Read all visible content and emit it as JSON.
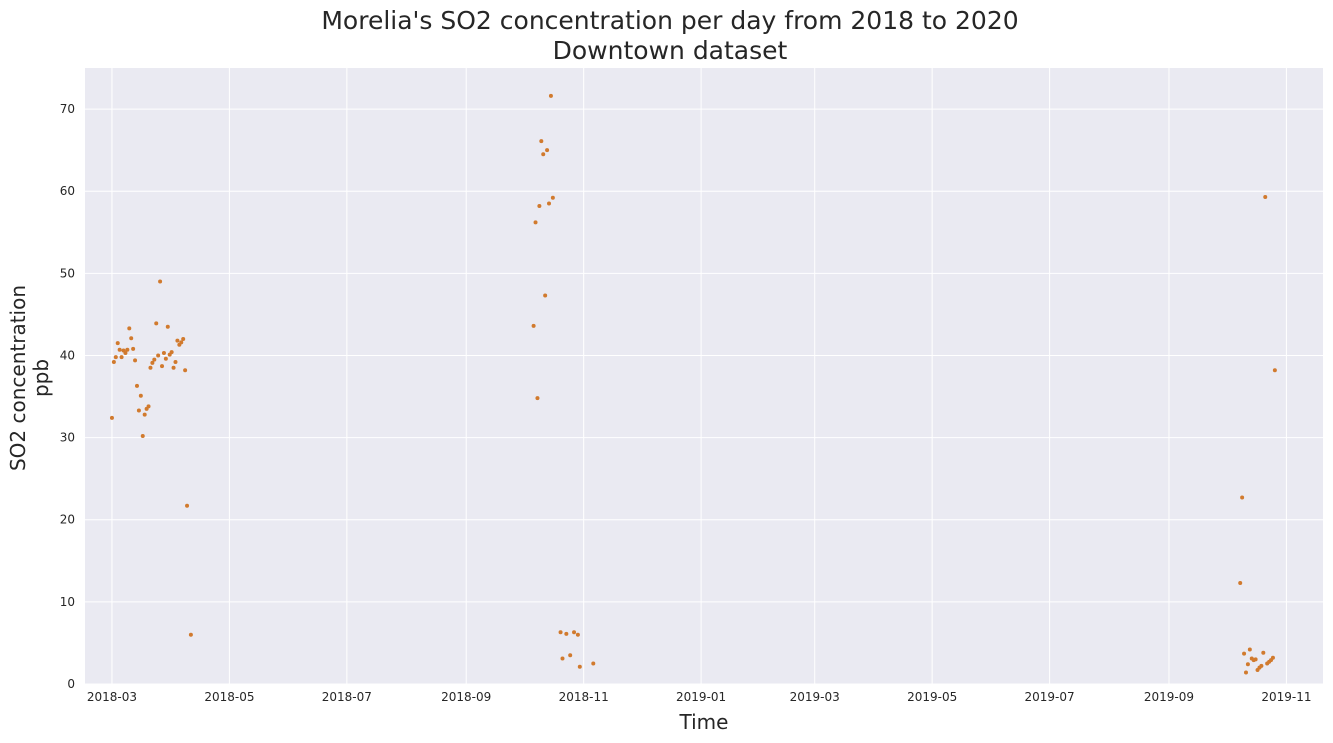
{
  "chart_data": {
    "type": "scatter",
    "title": "Morelia's SO2 concentration per day from 2018 to 2020",
    "subtitle": "Downtown dataset",
    "xlabel": "Time",
    "ylabel": "SO2 concentration",
    "ylabel2": "ppb",
    "x_ticks": [
      "2018-03",
      "2018-05",
      "2018-07",
      "2018-09",
      "2018-11",
      "2019-01",
      "2019-03",
      "2019-05",
      "2019-07",
      "2019-09",
      "2019-11"
    ],
    "y_ticks": [
      0,
      10,
      20,
      30,
      40,
      50,
      60,
      70
    ],
    "xlim": [
      "2018-02-15",
      "2019-11-20"
    ],
    "ylim": [
      0,
      75
    ],
    "grid": true,
    "colors": {
      "background": "#eaeaf2",
      "grid": "#ffffff",
      "points": "#d17a2e",
      "text": "#262626"
    },
    "series": [
      {
        "points": [
          [
            "2018-03-01",
            32.4
          ],
          [
            "2018-03-02",
            39.2
          ],
          [
            "2018-03-03",
            39.8
          ],
          [
            "2018-03-04",
            41.5
          ],
          [
            "2018-03-05",
            40.7
          ],
          [
            "2018-03-06",
            39.8
          ],
          [
            "2018-03-07",
            40.6
          ],
          [
            "2018-03-08",
            40.3
          ],
          [
            "2018-03-09",
            40.7
          ],
          [
            "2018-03-10",
            43.3
          ],
          [
            "2018-03-11",
            42.1
          ],
          [
            "2018-03-12",
            40.8
          ],
          [
            "2018-03-13",
            39.4
          ],
          [
            "2018-03-14",
            36.3
          ],
          [
            "2018-03-15",
            33.3
          ],
          [
            "2018-03-16",
            35.1
          ],
          [
            "2018-03-17",
            30.2
          ],
          [
            "2018-03-18",
            32.8
          ],
          [
            "2018-03-19",
            33.5
          ],
          [
            "2018-03-20",
            33.8
          ],
          [
            "2018-03-21",
            38.5
          ],
          [
            "2018-03-22",
            39.1
          ],
          [
            "2018-03-23",
            39.5
          ],
          [
            "2018-03-24",
            43.9
          ],
          [
            "2018-03-25",
            40.0
          ],
          [
            "2018-03-26",
            49.0
          ],
          [
            "2018-03-27",
            38.7
          ],
          [
            "2018-03-28",
            40.3
          ],
          [
            "2018-03-29",
            39.6
          ],
          [
            "2018-03-30",
            43.5
          ],
          [
            "2018-03-31",
            40.1
          ],
          [
            "2018-04-01",
            40.4
          ],
          [
            "2018-04-02",
            38.5
          ],
          [
            "2018-04-03",
            39.2
          ],
          [
            "2018-04-04",
            41.8
          ],
          [
            "2018-04-05",
            41.3
          ],
          [
            "2018-04-06",
            41.6
          ],
          [
            "2018-04-07",
            42.0
          ],
          [
            "2018-04-08",
            38.2
          ],
          [
            "2018-04-09",
            21.7
          ],
          [
            "2018-04-11",
            6.0
          ],
          [
            "2018-10-06",
            43.6
          ],
          [
            "2018-10-07",
            56.2
          ],
          [
            "2018-10-08",
            34.8
          ],
          [
            "2018-10-09",
            58.2
          ],
          [
            "2018-10-10",
            66.1
          ],
          [
            "2018-10-11",
            64.5
          ],
          [
            "2018-10-12",
            47.3
          ],
          [
            "2018-10-13",
            65.0
          ],
          [
            "2018-10-14",
            58.5
          ],
          [
            "2018-10-15",
            71.6
          ],
          [
            "2018-10-16",
            59.2
          ],
          [
            "2018-10-20",
            6.3
          ],
          [
            "2018-10-21",
            3.1
          ],
          [
            "2018-10-23",
            6.1
          ],
          [
            "2018-10-25",
            3.5
          ],
          [
            "2018-10-27",
            6.3
          ],
          [
            "2018-10-29",
            6.0
          ],
          [
            "2018-10-30",
            2.1
          ],
          [
            "2018-11-06",
            2.5
          ],
          [
            "2019-10-08",
            12.3
          ],
          [
            "2019-10-09",
            22.7
          ],
          [
            "2019-10-10",
            3.7
          ],
          [
            "2019-10-11",
            1.4
          ],
          [
            "2019-10-12",
            2.4
          ],
          [
            "2019-10-13",
            4.2
          ],
          [
            "2019-10-14",
            3.1
          ],
          [
            "2019-10-15",
            2.9
          ],
          [
            "2019-10-16",
            3.0
          ],
          [
            "2019-10-17",
            1.7
          ],
          [
            "2019-10-18",
            2.0
          ],
          [
            "2019-10-19",
            2.2
          ],
          [
            "2019-10-20",
            3.8
          ],
          [
            "2019-10-21",
            59.3
          ],
          [
            "2019-10-22",
            2.5
          ],
          [
            "2019-10-23",
            2.7
          ],
          [
            "2019-10-24",
            2.9
          ],
          [
            "2019-10-25",
            3.2
          ],
          [
            "2019-10-26",
            38.2
          ]
        ]
      }
    ]
  }
}
